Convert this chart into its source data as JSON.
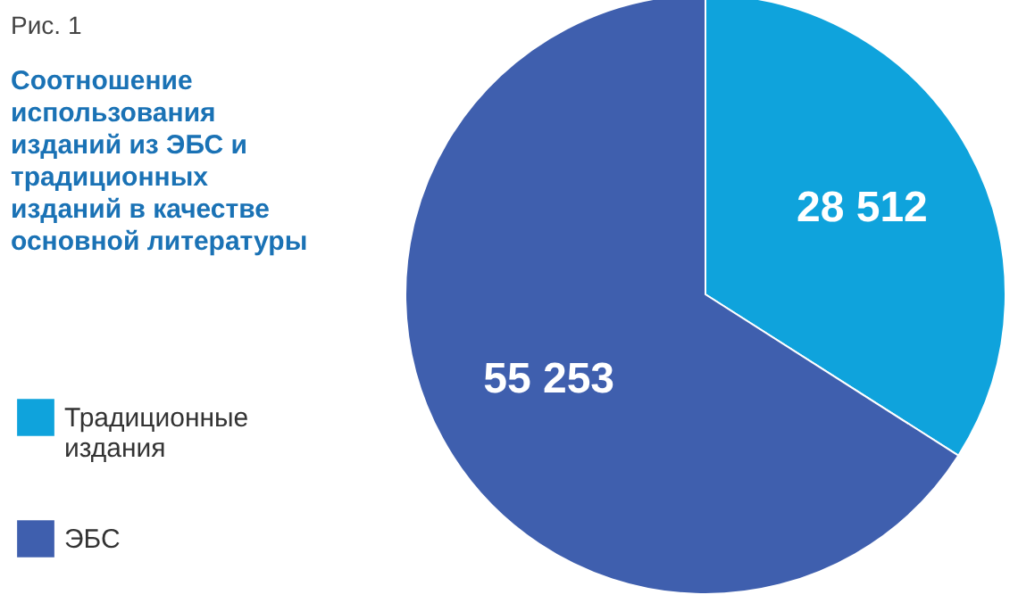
{
  "chart_data": {
    "type": "pie",
    "title": "Рис. 1",
    "subtitle": "Соотношение использования изданий из ЭБС и традиционных изданий в качестве основной литературы",
    "categories": [
      "Традиционные издания",
      "ЭБС"
    ],
    "values": [
      28512,
      55253
    ],
    "colors": [
      "#0fa3dc",
      "#3f5fae"
    ],
    "data_labels": true,
    "legend": "left"
  }
}
